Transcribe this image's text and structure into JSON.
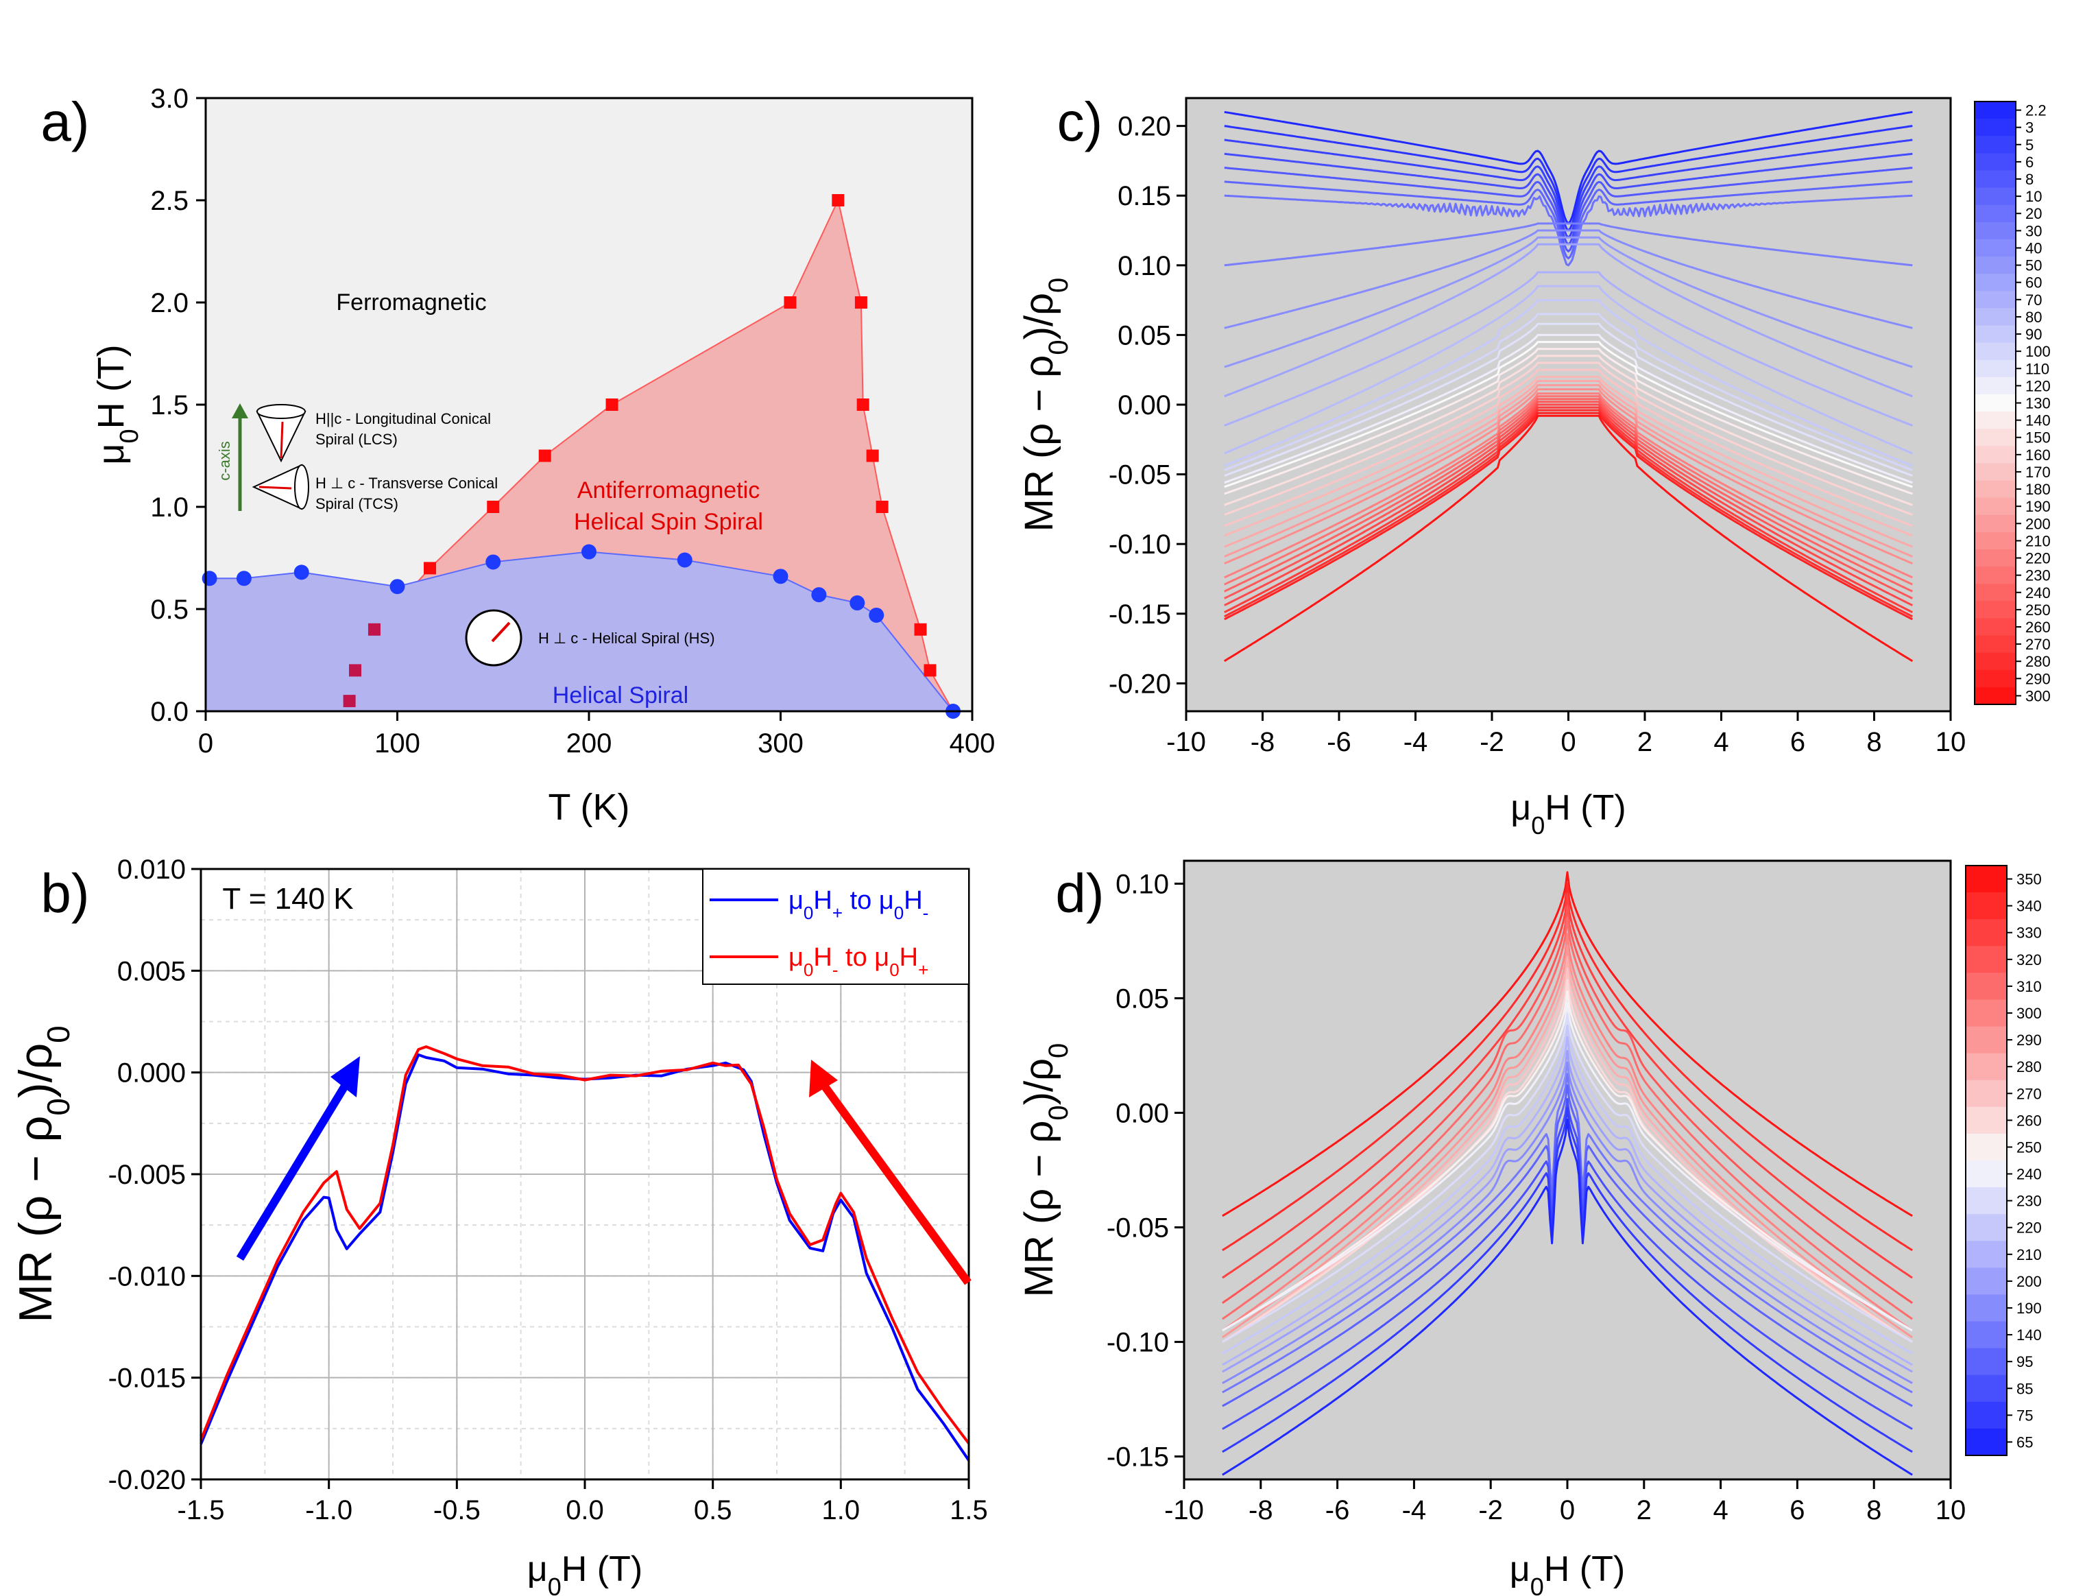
{
  "colors": {
    "blue": "#0000ff",
    "red": "#ff0000",
    "phaseBlue": "#b3b3ef",
    "phaseRed": "#f3b2b2",
    "grayBg": "#d0d0d0",
    "lightBg": "#f0f0f0"
  },
  "chart_data": [
    {
      "id": "a",
      "type": "scatter",
      "panel_label": "a)",
      "xlabel": "T (K)",
      "ylabel": "μ0H (T)",
      "xlim": [
        0,
        400
      ],
      "ylim": [
        0,
        3.0
      ],
      "xticks": [
        "0",
        "100",
        "200",
        "300",
        "400"
      ],
      "yticks": [
        "0.0",
        "0.5",
        "1.0",
        "1.5",
        "2.0",
        "2.5",
        "3.0"
      ],
      "series": [
        {
          "name": "Helical Spiral boundary",
          "marker": "circle",
          "color": "#1e3cff",
          "x": [
            2,
            20,
            50,
            100,
            150,
            200,
            250,
            300,
            320,
            340,
            350,
            390
          ],
          "y": [
            0.65,
            0.65,
            0.68,
            0.61,
            0.73,
            0.78,
            0.74,
            0.66,
            0.57,
            0.53,
            0.47,
            0.0
          ]
        },
        {
          "name": "Antiferromagnetic boundary",
          "marker": "square",
          "color": "#ff0a0a",
          "x": [
            75,
            78,
            88,
            117,
            150,
            177,
            212,
            305,
            330,
            342,
            343,
            348,
            353,
            373,
            378
          ],
          "y": [
            0.05,
            0.2,
            0.4,
            0.7,
            1.0,
            1.25,
            1.5,
            2.0,
            2.5,
            2.0,
            1.5,
            1.25,
            1.0,
            0.4,
            0.2
          ]
        }
      ],
      "annotations": {
        "ferro": "Ferromagnetic",
        "afm1": "Antiferromagnetic",
        "afm2": "Helical Spin Spiral",
        "helical": "Helical Spiral",
        "hs": "H ⊥ c - Helical Spiral (HS)",
        "lcs1": "H||c - Longitudinal Conical",
        "lcs2": "Spiral (LCS)",
        "tcs1": "H ⊥ c - Transverse Conical",
        "tcs2": "Spiral (TCS)",
        "caxis": "c-axis"
      }
    },
    {
      "id": "b",
      "type": "line",
      "panel_label": "b)",
      "title": "T = 140 K",
      "xlabel": "μ0H (T)",
      "ylabel": "MR (ρ − ρ0)/ρ0",
      "xlim": [
        -1.5,
        1.5
      ],
      "ylim": [
        -0.02,
        0.01
      ],
      "xticks": [
        "-1.5",
        "-1.0",
        "-0.5",
        "0.0",
        "0.5",
        "1.0",
        "1.5"
      ],
      "yticks": [
        "-0.020",
        "-0.015",
        "-0.010",
        "-0.005",
        "0.000",
        "0.005",
        "0.010"
      ],
      "legend": [
        "μ0H+ to μ0H-",
        "μ0H- to μ0H+"
      ],
      "series": [
        {
          "name": "μ0H+ to μ0H-",
          "color": "#0000ff",
          "x": [
            -1.5,
            -1.4,
            -1.3,
            -1.2,
            -1.1,
            -1.02,
            -1.0,
            -0.97,
            -0.93,
            -0.88,
            -0.8,
            -0.75,
            -0.7,
            -0.65,
            -0.62,
            -0.55,
            -0.5,
            -0.4,
            -0.3,
            -0.2,
            -0.1,
            0.0,
            0.1,
            0.2,
            0.3,
            0.4,
            0.5,
            0.55,
            0.62,
            0.65,
            0.7,
            0.75,
            0.8,
            0.88,
            0.93,
            0.97,
            1.0,
            1.05,
            1.1,
            1.2,
            1.3,
            1.4,
            1.5
          ],
          "y": [
            -0.0182,
            -0.0153,
            -0.0123,
            -0.0096,
            -0.0072,
            -0.0062,
            -0.0061,
            -0.0078,
            -0.0086,
            -0.008,
            -0.0068,
            -0.004,
            -0.0005,
            0.0008,
            0.0008,
            0.0005,
            0.0003,
            0.0001,
            0.0,
            -0.0002,
            -0.0002,
            -0.0004,
            -0.0002,
            -0.0002,
            -0.0001,
            0.0001,
            0.0004,
            0.0004,
            0.0002,
            -0.0005,
            -0.003,
            -0.0055,
            -0.0072,
            -0.0087,
            -0.0087,
            -0.007,
            -0.0062,
            -0.0072,
            -0.0098,
            -0.0126,
            -0.0155,
            -0.0173,
            -0.019
          ]
        },
        {
          "name": "μ0H- to μ0H+",
          "color": "#ff0000",
          "x": [
            -1.5,
            -1.4,
            -1.3,
            -1.2,
            -1.1,
            -1.02,
            -0.97,
            -0.93,
            -0.88,
            -0.8,
            -0.75,
            -0.7,
            -0.65,
            -0.62,
            -0.55,
            -0.5,
            -0.4,
            -0.3,
            -0.2,
            -0.1,
            0.0,
            0.1,
            0.2,
            0.3,
            0.4,
            0.5,
            0.55,
            0.6,
            0.65,
            0.7,
            0.75,
            0.8,
            0.88,
            0.93,
            0.98,
            1.0,
            1.05,
            1.1,
            1.2,
            1.3,
            1.4,
            1.5
          ],
          "y": [
            -0.018,
            -0.015,
            -0.012,
            -0.0093,
            -0.0068,
            -0.0055,
            -0.0048,
            -0.0068,
            -0.0076,
            -0.0065,
            -0.0035,
            -0.0002,
            0.0012,
            0.0012,
            0.001,
            0.0006,
            0.0004,
            0.0002,
            0.0,
            -0.0002,
            -0.0003,
            -0.0002,
            -0.0001,
            0.0,
            0.0002,
            0.0004,
            0.0004,
            0.0003,
            -0.0005,
            -0.0028,
            -0.0052,
            -0.007,
            -0.0084,
            -0.0083,
            -0.0064,
            -0.006,
            -0.0068,
            -0.0092,
            -0.012,
            -0.0148,
            -0.0165,
            -0.0183
          ]
        }
      ]
    },
    {
      "id": "c",
      "type": "line",
      "panel_label": "c)",
      "xlabel": "μ0H (T)",
      "ylabel": "MR (ρ − ρ0)/ρ0",
      "xlim": [
        -10,
        10
      ],
      "ylim": [
        -0.22,
        0.22
      ],
      "xticks": [
        "-10",
        "-8",
        "-6",
        "-4",
        "-2",
        "0",
        "2",
        "4",
        "6",
        "8",
        "10"
      ],
      "yticks": [
        "-0.20",
        "-0.15",
        "-0.10",
        "-0.05",
        "0.00",
        "0.05",
        "0.10",
        "0.15",
        "0.20"
      ],
      "colorbar_labels": [
        "2.2",
        "3",
        "5",
        "6",
        "8",
        "10",
        "20",
        "30",
        "40",
        "50",
        "60",
        "70",
        "80",
        "90",
        "100",
        "110",
        "120",
        "130",
        "140",
        "150",
        "160",
        "170",
        "180",
        "190",
        "200",
        "210",
        "220",
        "230",
        "240",
        "250",
        "260",
        "270",
        "280",
        "290",
        "300"
      ],
      "curve_end_values": [
        0.21,
        0.2,
        0.19,
        0.18,
        0.17,
        0.16,
        0.15,
        0.1,
        0.055,
        0.027,
        0.006,
        -0.015,
        -0.035,
        -0.04,
        -0.043,
        -0.047,
        -0.052,
        -0.055,
        -0.06,
        -0.068,
        -0.075,
        -0.083,
        -0.09,
        -0.098,
        -0.105,
        -0.11,
        -0.12,
        -0.125,
        -0.13,
        -0.135,
        -0.14,
        -0.145,
        -0.148,
        -0.15,
        -0.18
      ],
      "curve_peak_values": [
        0.165,
        0.16,
        0.155,
        0.15,
        0.145,
        0.14,
        0.135,
        0.13,
        0.125,
        0.12,
        0.115,
        0.095,
        0.085,
        0.075,
        0.065,
        0.058,
        0.05,
        0.045,
        0.04,
        0.035,
        0.03,
        0.025,
        0.02,
        0.017,
        0.014,
        0.011,
        0.008,
        0.006,
        0.004,
        0.002,
        0.0,
        -0.002,
        -0.004,
        -0.006,
        -0.008
      ]
    },
    {
      "id": "d",
      "type": "line",
      "panel_label": "d)",
      "xlabel": "μ0H (T)",
      "ylabel": "MR (ρ − ρ0)/ρ0",
      "xlim": [
        -10,
        10
      ],
      "ylim": [
        -0.16,
        0.11
      ],
      "xticks": [
        "-10",
        "-8",
        "-6",
        "-4",
        "-2",
        "0",
        "2",
        "4",
        "6",
        "8",
        "10"
      ],
      "yticks": [
        "-0.15",
        "-0.10",
        "-0.05",
        "0.00",
        "0.05",
        "0.10"
      ],
      "colorbar_labels": [
        "350",
        "340",
        "330",
        "320",
        "310",
        "300",
        "290",
        "280",
        "270",
        "260",
        "250",
        "240",
        "230",
        "220",
        "210",
        "200",
        "190",
        "140",
        "95",
        "85",
        "75",
        "65"
      ],
      "curve_end_values": [
        -0.045,
        -0.06,
        -0.072,
        -0.083,
        -0.09,
        -0.095,
        -0.098,
        -0.1,
        -0.1,
        -0.1,
        -0.095,
        -0.095,
        -0.1,
        -0.105,
        -0.11,
        -0.113,
        -0.118,
        -0.122,
        -0.128,
        -0.138,
        -0.148,
        -0.158
      ],
      "curve_peak_values": [
        0.105,
        0.1,
        0.095,
        0.09,
        0.085,
        0.078,
        0.073,
        0.068,
        0.063,
        0.058,
        0.053,
        0.048,
        0.043,
        0.038,
        0.033,
        0.027,
        0.022,
        0.017,
        0.012,
        0.006,
        0.002,
        -0.003
      ]
    }
  ]
}
